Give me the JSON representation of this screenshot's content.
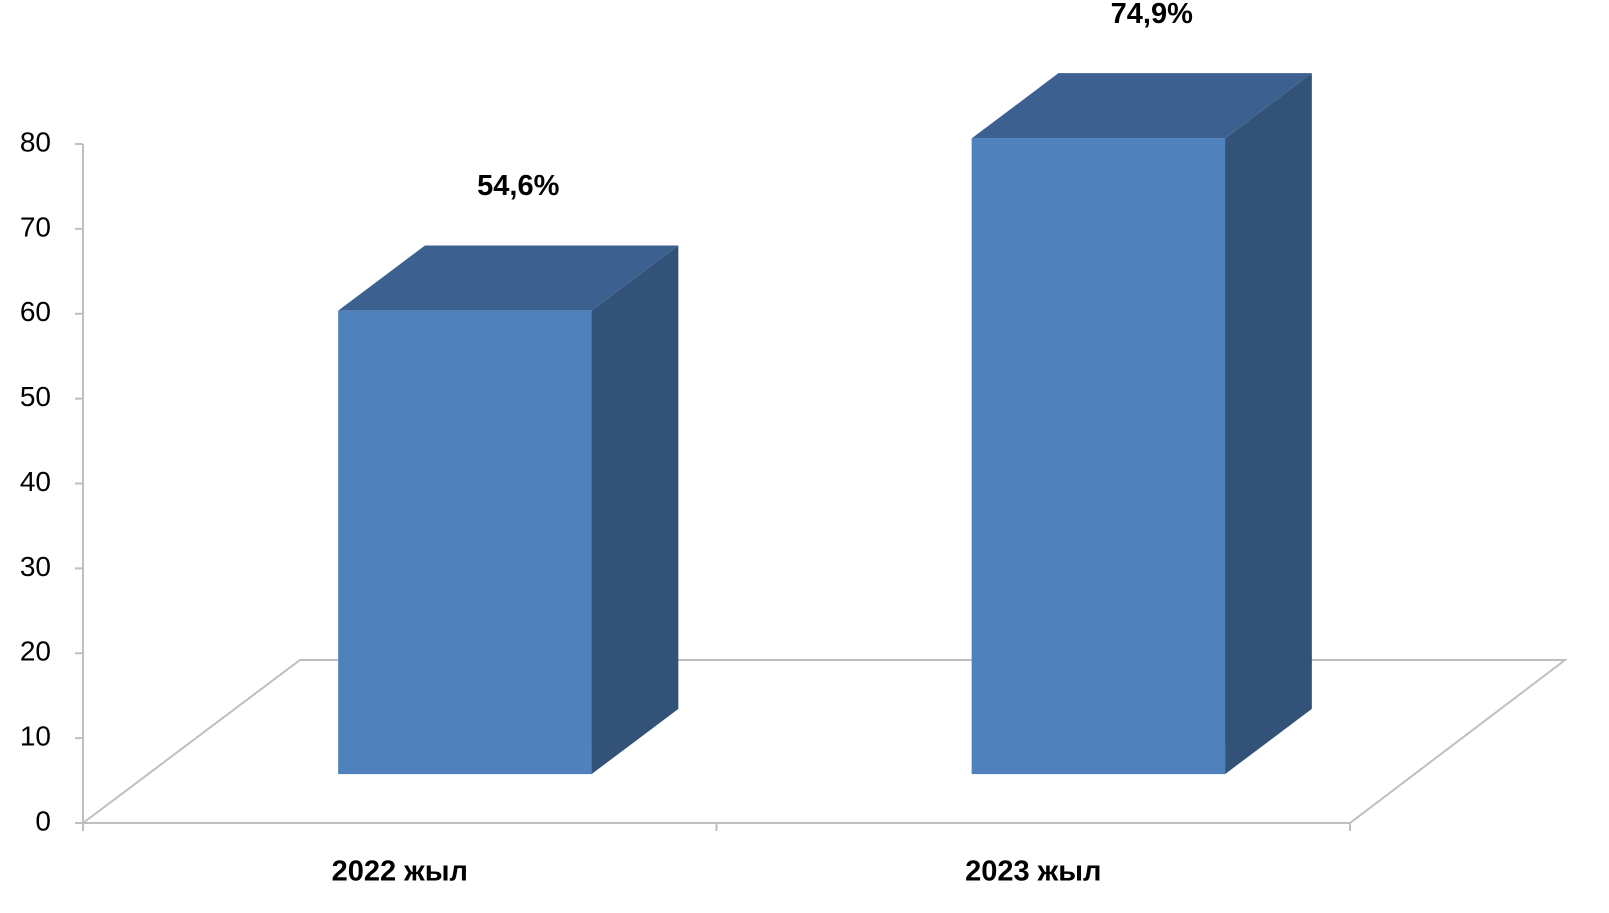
{
  "chart_data": {
    "type": "bar3d",
    "categories": [
      "2022 жыл",
      "2023 жыл"
    ],
    "values": [
      54.6,
      74.9
    ],
    "value_labels": [
      "54,6%",
      "74,9%"
    ],
    "color": "#4f81bd",
    "ylim": [
      0,
      80
    ],
    "yticks": [
      0,
      10,
      20,
      30,
      40,
      50,
      60,
      70,
      80
    ]
  }
}
